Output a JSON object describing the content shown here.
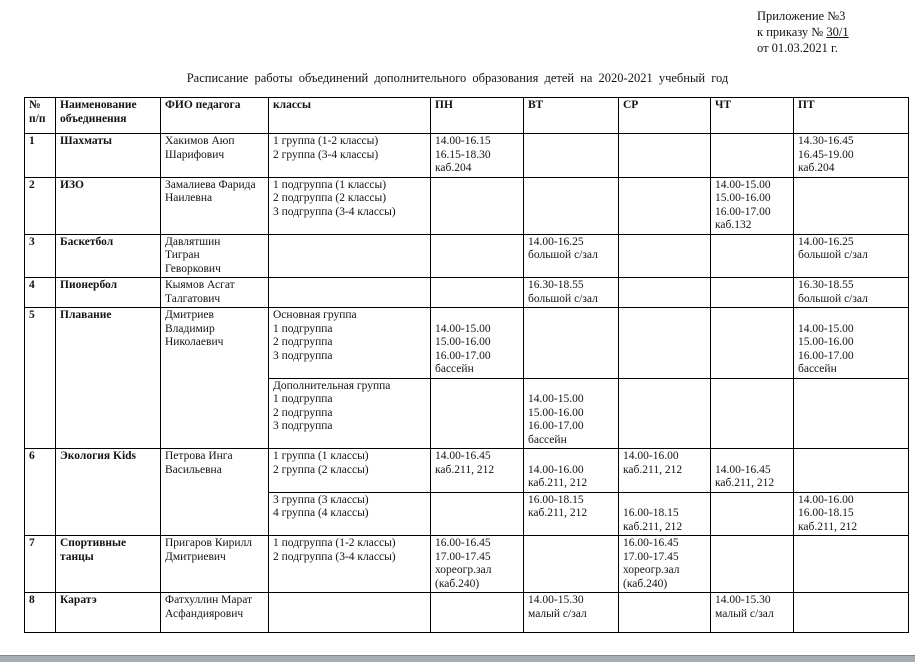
{
  "annotation": {
    "line1": "Приложение №3",
    "line2_prefix": "к приказу № ",
    "line2_number": "30/1",
    "line3": "от 01.03.2021 г."
  },
  "title": "Расписание работы объединений дополнительного образования детей на 2020-2021 учебный год",
  "table": {
    "header": [
      "№\nп/п",
      "Наименование\nобъединения",
      "ФИО педагога",
      "классы",
      "ПН",
      "ВТ",
      "СР",
      "ЧТ",
      "ПТ"
    ],
    "rows": [
      {
        "name": "row-shakhmaty",
        "cells": [
          {
            "t": "1",
            "b": 1
          },
          {
            "t": "Шахматы",
            "b": 1
          },
          {
            "t": "Хакимов Аюп\nШарифович"
          },
          {
            "t": "1 группа  (1-2 классы)\n2 группа  (3-4 классы)"
          },
          {
            "t": "14.00-16.15\n16.15-18.30\nкаб.204"
          },
          {
            "t": ""
          },
          {
            "t": ""
          },
          {
            "t": ""
          },
          {
            "t": "14.30-16.45\n16.45-19.00\nкаб.204"
          }
        ]
      },
      {
        "name": "row-izo",
        "cells": [
          {
            "t": "2",
            "b": 1
          },
          {
            "t": "ИЗО",
            "b": 1
          },
          {
            "t": "Замалиева Фарида\nНаилевна"
          },
          {
            "t": "1 подгруппа  (1 классы)\n2 подгруппа  (2 классы)\n3 подгруппа  (3-4 классы)"
          },
          {
            "t": ""
          },
          {
            "t": ""
          },
          {
            "t": ""
          },
          {
            "t": "14.00-15.00\n15.00-16.00\n16.00-17.00\nкаб.132"
          },
          {
            "t": ""
          }
        ]
      },
      {
        "name": "row-basketbol",
        "cells": [
          {
            "t": "3",
            "b": 1
          },
          {
            "t": "Баскетбол",
            "b": 1
          },
          {
            "t": "Давлятшин\nТигран\nГеворкович"
          },
          {
            "t": ""
          },
          {
            "t": ""
          },
          {
            "t": "14.00-16.25\nбольшой с/зал"
          },
          {
            "t": ""
          },
          {
            "t": ""
          },
          {
            "t": "14.00-16.25\nбольшой с/зал"
          }
        ]
      },
      {
        "name": "row-pionerbol",
        "cells": [
          {
            "t": "4",
            "b": 1
          },
          {
            "t": "Пионербол",
            "b": 1
          },
          {
            "t": "Кыямов Асгат\nТалгатович"
          },
          {
            "t": ""
          },
          {
            "t": ""
          },
          {
            "t": "16.30-18.55\nбольшой с/зал"
          },
          {
            "t": ""
          },
          {
            "t": ""
          },
          {
            "t": "16.30-18.55\nбольшой с/зал"
          }
        ]
      },
      {
        "name": "row-plavanie-osnovnaya",
        "cells": [
          {
            "t": "5",
            "b": 1,
            "rs": 2
          },
          {
            "t": "Плавание",
            "b": 1,
            "rs": 2
          },
          {
            "t": "Дмитриев\nВладимир\nНиколаевич",
            "rs": 2
          },
          {
            "t": "Основная группа\n1 подгруппа\n2 подгруппа\n3 подгруппа"
          },
          {
            "t": "\n14.00-15.00\n15.00-16.00\n16.00-17.00\nбассейн"
          },
          {
            "t": ""
          },
          {
            "t": ""
          },
          {
            "t": ""
          },
          {
            "t": "\n14.00-15.00\n15.00-16.00\n16.00-17.00\nбассейн"
          }
        ]
      },
      {
        "name": "row-plavanie-dopolnitelnaya",
        "cells": [
          {
            "t": "Дополнительная  группа\n1 подгруппа\n2 подгруппа\n3 подгруппа"
          },
          {
            "t": ""
          },
          {
            "t": "\n14.00-15.00\n15.00-16.00\n16.00-17.00\nбассейн"
          },
          {
            "t": ""
          },
          {
            "t": ""
          },
          {
            "t": ""
          }
        ]
      },
      {
        "name": "row-ekologiya-gr-1-2",
        "cells": [
          {
            "t": "6",
            "b": 1,
            "rs": 2
          },
          {
            "t": "Экология Kids",
            "b": 1,
            "rs": 2
          },
          {
            "t": "Петрова Инга\nВасильевна",
            "rs": 2
          },
          {
            "t": "1 группа  (1 классы)\n2 группа  (2 классы)"
          },
          {
            "t": "14.00-16.45\nкаб.211, 212"
          },
          {
            "t": "\n14.00-16.00\nкаб.211, 212"
          },
          {
            "t": "14.00-16.00\nкаб.211, 212"
          },
          {
            "t": "\n14.00-16.45\nкаб.211, 212"
          },
          {
            "t": ""
          }
        ]
      },
      {
        "name": "row-ekologiya-gr-3-4",
        "cells": [
          {
            "t": "3 группа  (3 классы)\n4 группа  (4 классы)"
          },
          {
            "t": ""
          },
          {
            "t": "16.00-18.15\nкаб.211, 212"
          },
          {
            "t": "\n16.00-18.15\nкаб.211, 212"
          },
          {
            "t": ""
          },
          {
            "t": "14.00-16.00\n16.00-18.15\nкаб.211, 212"
          }
        ]
      },
      {
        "name": "row-sportivnye-tantsy",
        "cells": [
          {
            "t": "7",
            "b": 1
          },
          {
            "t": "Спортивные\nтанцы",
            "b": 1
          },
          {
            "t": "Пригаров Кирилл\nДмитриевич"
          },
          {
            "t": "1 подгруппа  (1-2 классы)\n2 подгруппа  (3-4 классы)"
          },
          {
            "t": "16.00-16.45\n17.00-17.45\nхореогр.зал\n(каб.240)"
          },
          {
            "t": ""
          },
          {
            "t": "16.00-16.45\n17.00-17.45\nхореогр.зал\n(каб.240)"
          },
          {
            "t": ""
          },
          {
            "t": ""
          }
        ]
      },
      {
        "name": "row-karate",
        "cells": [
          {
            "t": "8",
            "b": 1
          },
          {
            "t": "Каратэ",
            "b": 1
          },
          {
            "t": "Фатхуллин Марат\nАсфандиярович"
          },
          {
            "t": ""
          },
          {
            "t": ""
          },
          {
            "t": "14.00-15.30\nмалый с/зал"
          },
          {
            "t": ""
          },
          {
            "t": "14.00-15.30\nмалый с/зал"
          },
          {
            "t": ""
          }
        ]
      }
    ]
  }
}
